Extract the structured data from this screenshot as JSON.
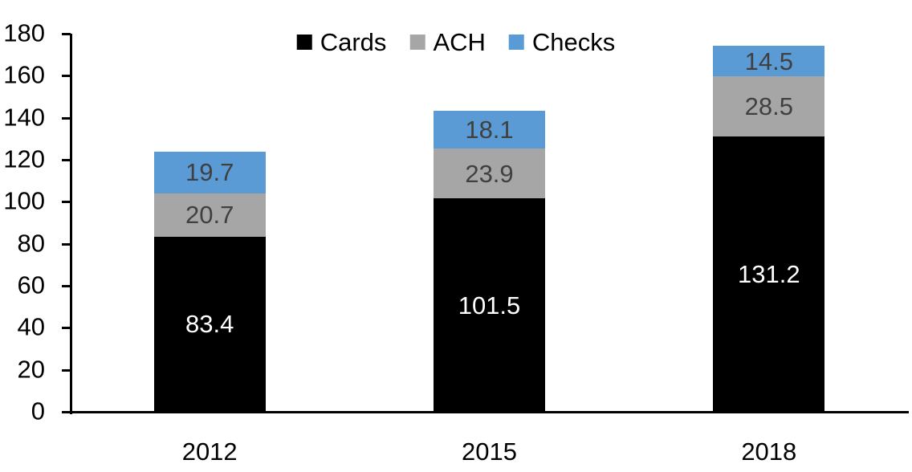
{
  "chart_data": {
    "type": "bar",
    "stacked": true,
    "categories": [
      "2012",
      "2015",
      "2018"
    ],
    "series": [
      {
        "name": "Cards",
        "values": [
          83.4,
          101.5,
          131.2
        ],
        "color": "#000000",
        "label_color": "#FFFFFF"
      },
      {
        "name": "ACH",
        "values": [
          20.7,
          23.9,
          28.5
        ],
        "color": "#A6A6A6",
        "label_color": "#404040"
      },
      {
        "name": "Checks",
        "values": [
          19.7,
          18.1,
          14.5
        ],
        "color": "#5B9BD5",
        "label_color": "#404040"
      }
    ],
    "title": "",
    "xlabel": "",
    "ylabel": "",
    "ylim": [
      0,
      180
    ],
    "yticks": [
      0,
      20,
      40,
      60,
      80,
      100,
      120,
      140,
      160,
      180
    ],
    "grid": false,
    "legend_position": "top",
    "axis_color": "#000000",
    "background_color": "#FFFFFF"
  }
}
